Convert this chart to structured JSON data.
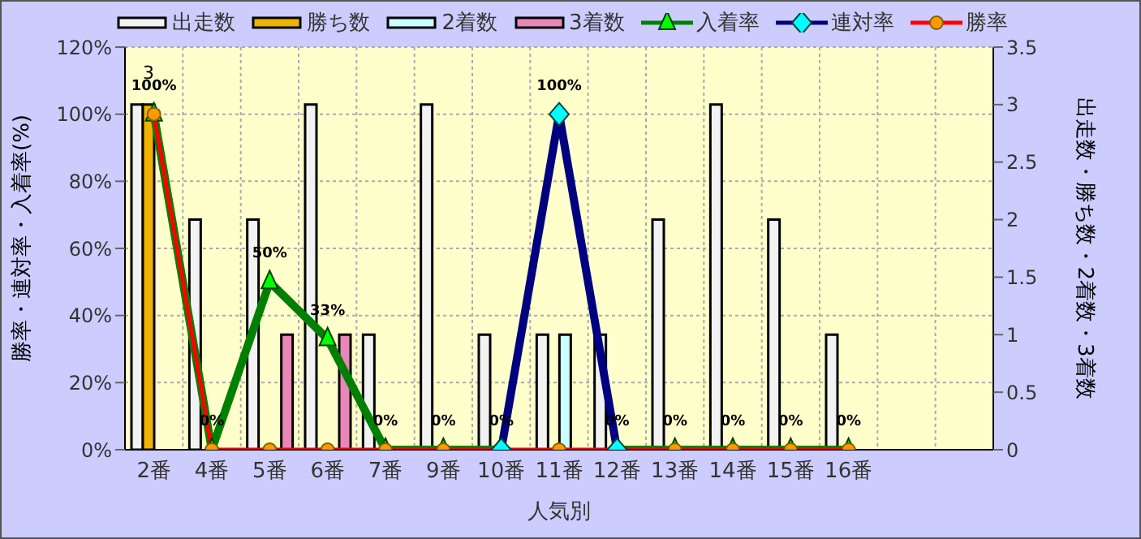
{
  "chart_data": {
    "type": "bar",
    "xlabel": "人気別",
    "ylabel": "勝率・連対率・入着率(%)",
    "y2label": "出走数・勝ち数・2着数・3着数",
    "categories": [
      "2番",
      "4番",
      "5番",
      "6番",
      "7番",
      "9番",
      "10番",
      "11番",
      "12番",
      "13番",
      "14番",
      "15番",
      "16番",
      null,
      null
    ],
    "series": [
      {
        "name": "出走数",
        "axis": "y2",
        "color": "#f2f2f2",
        "values": [
          3,
          2,
          2,
          3,
          1,
          3,
          1,
          1,
          1,
          2,
          3,
          2,
          1,
          null,
          null
        ]
      },
      {
        "name": "勝ち数",
        "axis": "y2",
        "color": "#f0b400",
        "values": [
          3,
          0,
          0,
          0,
          0,
          0,
          0,
          0,
          0,
          0,
          0,
          0,
          0,
          null,
          null
        ],
        "value_labels": [
          "3",
          null,
          null,
          null,
          null,
          null,
          null,
          null,
          null,
          null,
          null,
          null,
          null,
          null,
          null
        ]
      },
      {
        "name": "2着数",
        "axis": "y2",
        "color": "#ccffff",
        "values": [
          0,
          0,
          0,
          0,
          0,
          0,
          0,
          1,
          0,
          0,
          0,
          0,
          0,
          null,
          null
        ]
      },
      {
        "name": "3着数",
        "axis": "y2",
        "color": "#e887b8",
        "values": [
          0,
          0,
          1,
          1,
          0,
          0,
          0,
          0,
          0,
          0,
          0,
          0,
          0,
          null,
          null
        ]
      },
      {
        "name": "入着率",
        "type": "line",
        "axis": "y",
        "color": "#008000",
        "marker": "triangle",
        "values": [
          100,
          0,
          50,
          33,
          0,
          0,
          0,
          null,
          0,
          0,
          0,
          0,
          0,
          null,
          null
        ],
        "value_labels": [
          "100%",
          "0%",
          "50%",
          "33%",
          "0%",
          "0%",
          "0%",
          null,
          "0%",
          "0%",
          "0%",
          "0%",
          "0%",
          null,
          null
        ]
      },
      {
        "name": "連対率",
        "type": "line",
        "axis": "y",
        "color": "#000080",
        "marker": "diamond",
        "values": [
          null,
          null,
          null,
          null,
          null,
          null,
          0,
          100,
          0,
          null,
          null,
          null,
          null,
          null,
          null
        ],
        "value_labels": [
          null,
          null,
          null,
          null,
          null,
          null,
          null,
          "100%",
          null,
          null,
          null,
          null,
          null,
          null,
          null
        ]
      },
      {
        "name": "勝率",
        "type": "line",
        "axis": "y",
        "color": "#ff0000",
        "marker": "circle",
        "values": [
          100,
          0,
          0,
          0,
          0,
          0,
          0,
          0,
          0,
          0,
          0,
          0,
          0,
          null,
          null
        ]
      }
    ],
    "ylim": [
      0,
      120
    ],
    "yticks": [
      {
        "value": 0,
        "label": "0%"
      },
      {
        "value": 20,
        "label": "20%"
      },
      {
        "value": 40,
        "label": "40%"
      },
      {
        "value": 60,
        "label": "60%"
      },
      {
        "value": 80,
        "label": "80%"
      },
      {
        "value": 100,
        "label": "100%"
      },
      {
        "value": 120,
        "label": "120%"
      }
    ],
    "y2lim": [
      0,
      3.5
    ],
    "y2ticks": [
      0,
      0.5,
      1,
      1.5,
      2,
      2.5,
      3,
      3.5
    ],
    "grid": true,
    "legend": "top"
  }
}
